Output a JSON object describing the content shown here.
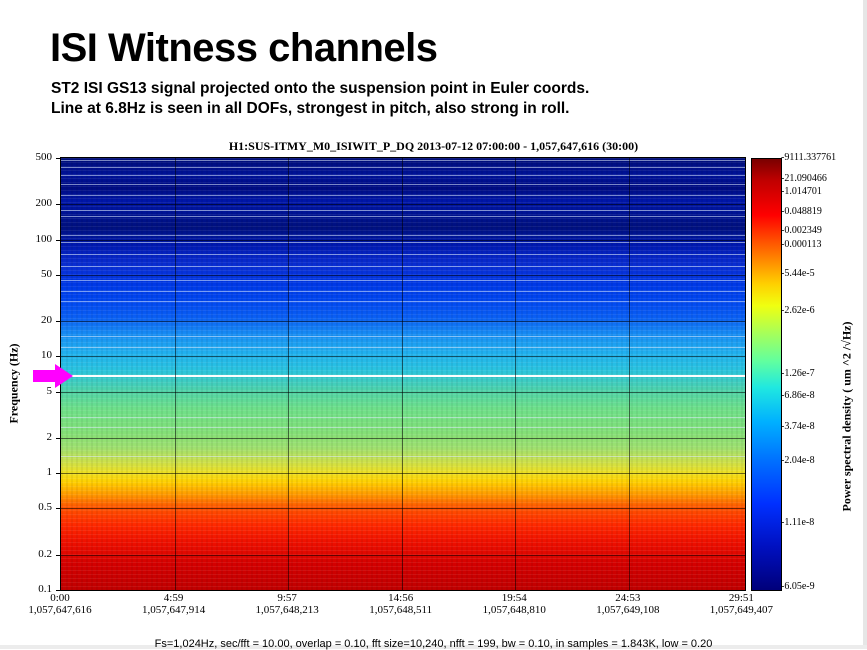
{
  "slide": {
    "title": "ISI Witness channels",
    "subtitle_line1": "ST2 ISI GS13 signal projected onto the suspension point in Euler coords.",
    "subtitle_line2": "Line at 6.8Hz is seen in all DOFs, strongest in pitch, also strong in roll."
  },
  "plot": {
    "title": "H1:SUS-ITMY_M0_ISIWIT_P_DQ 2013-07-12 07:00:00 - 1,057,647,616 (30:00)",
    "ylabel": "Frequency (Hz)",
    "colorbar_label": "Power spectral density (  um   ^2 /√Hz)",
    "footer": "Fs=1,024Hz, sec/fft = 10.00, overlap = 0.10, fft size=10,240, nfft = 199, bw = 0.10, in samples = 1.843K, low = 0.20",
    "arrow_color": "#ff00ff"
  },
  "chart_data": {
    "type": "heatmap",
    "title": "H1:SUS-ITMY_M0_ISIWIT_P_DQ 2013-07-12 07:00:00 - 1,057,647,616 (30:00)",
    "xlabel": "",
    "ylabel": "Frequency (Hz)",
    "y_scale": "log",
    "ylim": [
      0.1,
      500
    ],
    "y_ticks": [
      "500",
      "200",
      "100",
      "50",
      "20",
      "10",
      "5",
      "2",
      "1",
      "0.5",
      "0.2",
      "0.1"
    ],
    "x_ticks": [
      {
        "top": "0:00",
        "bottom": "1,057,647,616"
      },
      {
        "top": "4:59",
        "bottom": "1,057,647,914"
      },
      {
        "top": "9:57",
        "bottom": "1,057,648,213"
      },
      {
        "top": "14:56",
        "bottom": "1,057,648,511"
      },
      {
        "top": "19:54",
        "bottom": "1,057,648,810"
      },
      {
        "top": "24:53",
        "bottom": "1,057,649,108"
      },
      {
        "top": "29:51",
        "bottom": "1,057,649,407"
      }
    ],
    "colorbar_ticks": [
      "9111.337761",
      "21.090466",
      "1.014701",
      "0.048819",
      "0.002349",
      "0.000113",
      "5.44e-5",
      "2.62e-6",
      "1.26e-7",
      "6.86e-8",
      "3.74e-8",
      "2.04e-8",
      "1.11e-8",
      "6.05e-9"
    ],
    "highlighted_line_hz": 6.8,
    "grid": true
  }
}
